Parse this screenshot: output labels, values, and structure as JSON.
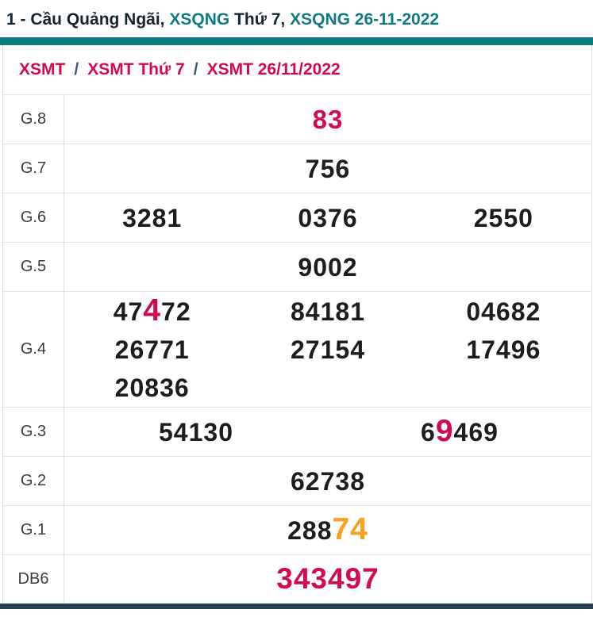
{
  "title": {
    "segments": [
      {
        "text": "1 - Cầu Quảng Ngãi, ",
        "style": "dark"
      },
      {
        "text": "XSQNG",
        "style": "teal"
      },
      {
        "text": " Thứ 7, ",
        "style": "dark"
      },
      {
        "text": "XSQNG 26-11-2022",
        "style": "teal"
      }
    ]
  },
  "breadcrumb": {
    "separator": "/",
    "items": [
      {
        "label": "XSMT"
      },
      {
        "label": "XSMT Thứ 7"
      },
      {
        "label": "XSMT 26/11/2022"
      }
    ]
  },
  "results_table": {
    "rows": [
      {
        "label": "G.8",
        "cols": 1,
        "values": [
          [
            {
              "t": "83",
              "hl": "crimson"
            }
          ]
        ]
      },
      {
        "label": "G.7",
        "cols": 1,
        "values": [
          [
            {
              "t": "756"
            }
          ]
        ]
      },
      {
        "label": "G.6",
        "cols": 3,
        "values": [
          [
            {
              "t": "3281"
            }
          ],
          [
            {
              "t": "0376"
            }
          ],
          [
            {
              "t": "2550"
            }
          ]
        ]
      },
      {
        "label": "G.5",
        "cols": 1,
        "values": [
          [
            {
              "t": "9002"
            }
          ]
        ]
      },
      {
        "label": "G.4",
        "cols": 3,
        "values": [
          [
            {
              "t": "47"
            },
            {
              "t": "4",
              "hl": "crimson-big"
            },
            {
              "t": "72"
            }
          ],
          [
            {
              "t": "84181"
            }
          ],
          [
            {
              "t": "04682"
            }
          ],
          [
            {
              "t": "26771"
            }
          ],
          [
            {
              "t": "27154"
            }
          ],
          [
            {
              "t": "17496"
            }
          ],
          [
            {
              "t": "20836"
            }
          ]
        ]
      },
      {
        "label": "G.3",
        "cols": 2,
        "values": [
          [
            {
              "t": "54130"
            }
          ],
          [
            {
              "t": "6"
            },
            {
              "t": "9",
              "hl": "crimson-big"
            },
            {
              "t": "469"
            }
          ]
        ]
      },
      {
        "label": "G.2",
        "cols": 1,
        "values": [
          [
            {
              "t": "62738"
            }
          ]
        ]
      },
      {
        "label": "G.1",
        "cols": 1,
        "values": [
          [
            {
              "t": "288"
            },
            {
              "t": "74",
              "hl": "orange-big"
            }
          ]
        ]
      },
      {
        "label": "DB6",
        "cols": 1,
        "values": [
          [
            {
              "t": "343497",
              "hl": "crimson-xl"
            }
          ]
        ]
      }
    ]
  },
  "colors": {
    "teal": "#0d7c82",
    "crimson": "#d20a50",
    "orange": "#f9a11b",
    "separator_blue": "#3a5a78",
    "bottom_bar": "#24414c",
    "border": "#e2e2e2"
  }
}
